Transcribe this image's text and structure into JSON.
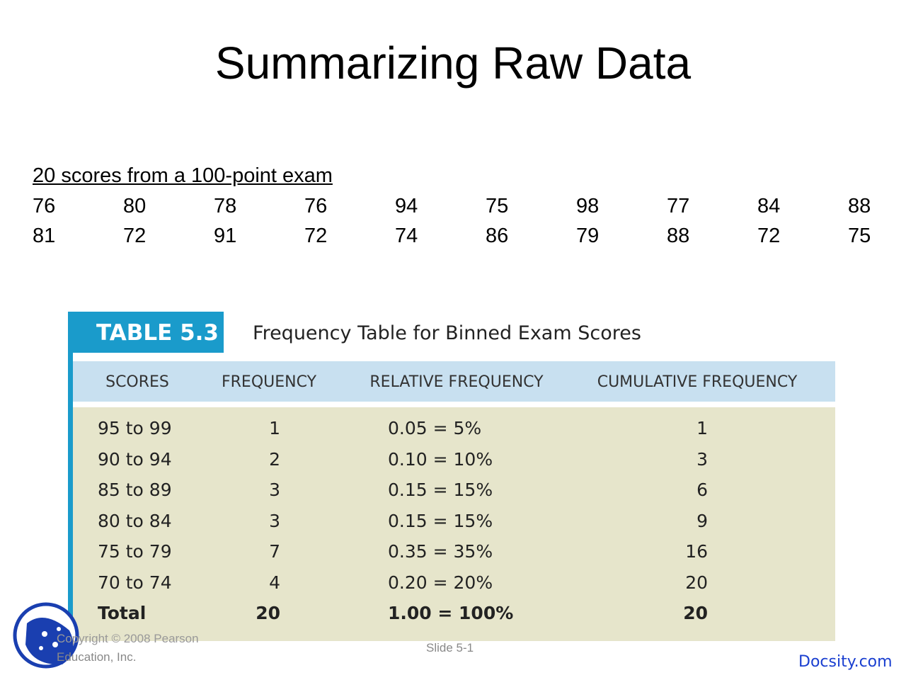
{
  "title": "Summarizing Raw Data",
  "scores": {
    "caption": "20 scores from a 100-point exam",
    "rows": [
      [
        "76",
        "80",
        "78",
        "76",
        "94",
        "75",
        "98",
        "77",
        "84",
        "88"
      ],
      [
        "81",
        "72",
        "91",
        "72",
        "74",
        "86",
        "79",
        "88",
        "72",
        "75"
      ]
    ]
  },
  "table": {
    "label": "TABLE 5.3",
    "title": "Frequency Table for Binned Exam Scores",
    "headers": [
      "SCORES",
      "FREQUENCY",
      "RELATIVE FREQUENCY",
      "CUMULATIVE FREQUENCY"
    ],
    "rows": [
      [
        "95 to 99",
        "1",
        "0.05 = 5%",
        "1"
      ],
      [
        "90 to 94",
        "2",
        "0.10 = 10%",
        "3"
      ],
      [
        "85 to 89",
        "3",
        "0.15 = 15%",
        "6"
      ],
      [
        "80 to 84",
        "3",
        "0.15 = 15%",
        "9"
      ],
      [
        "75 to 79",
        "7",
        "0.35 = 35%",
        "16"
      ],
      [
        "70 to 74",
        "4",
        "0.20 = 20%",
        "20"
      ]
    ],
    "total": [
      "Total",
      "20",
      "1.00 = 100%",
      "20"
    ]
  },
  "footer": {
    "copyright_line1": "Copyright © 2008 Pearson",
    "copyright_line2": "Education, Inc.",
    "slide": "Slide 5-1",
    "brand": "Docsity.com"
  }
}
